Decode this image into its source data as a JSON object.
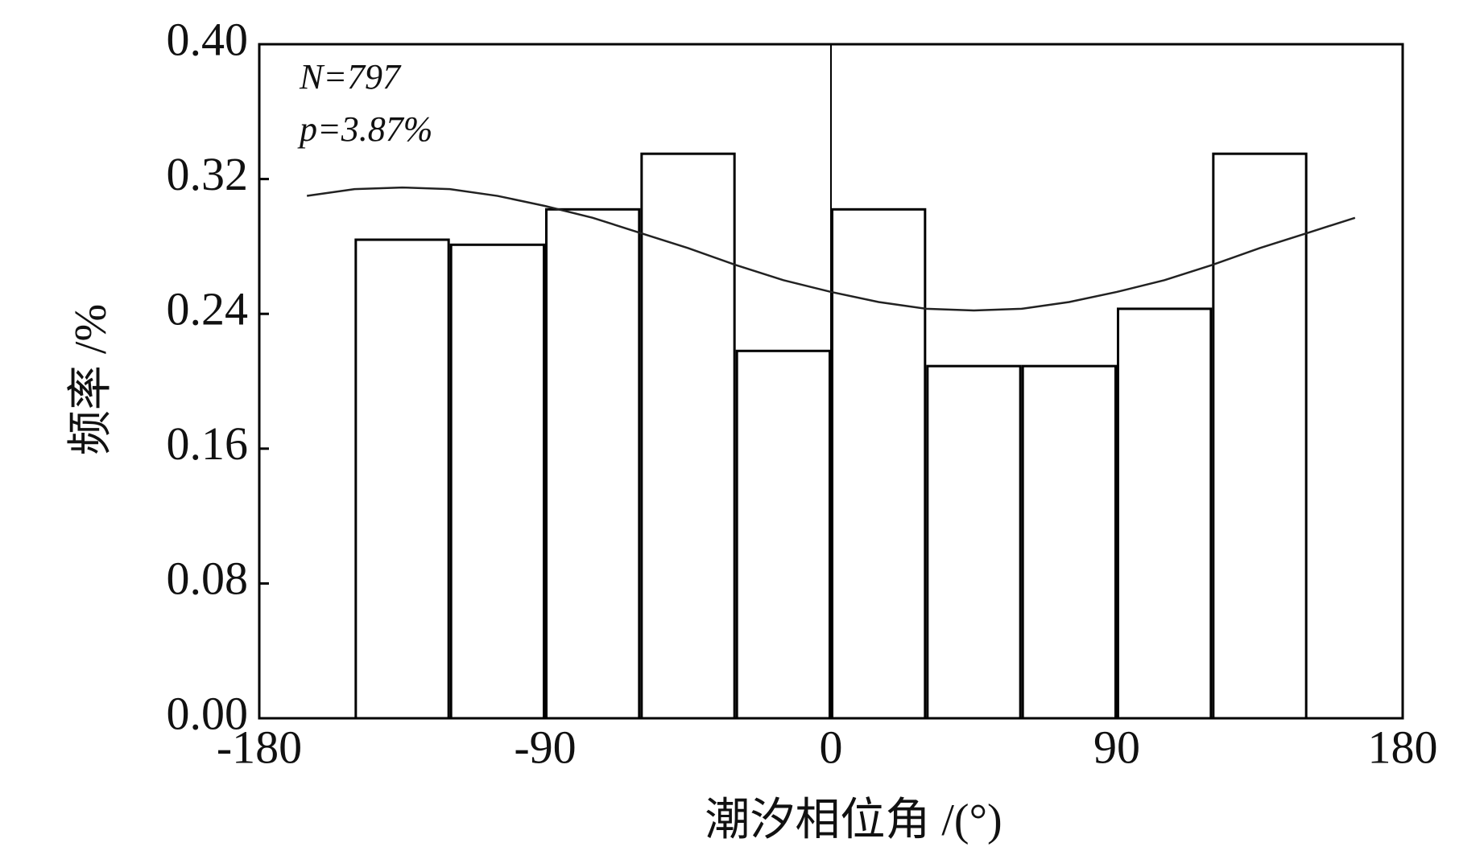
{
  "chart_data": {
    "type": "histogram",
    "xlabel": "潮汐相位角 /(°)",
    "ylabel": "频率 /%",
    "annotations": [
      "N=797",
      "p=3.87%"
    ],
    "bins": [
      -150,
      -120,
      -90,
      -60,
      -30,
      0,
      30,
      60,
      90,
      120,
      150
    ],
    "values": [
      0.284,
      0.281,
      0.302,
      0.335,
      0.218,
      0.302,
      0.209,
      0.209,
      0.243,
      0.335
    ],
    "color": "#ffffff",
    "edgecolor": "#000000",
    "fit": {
      "type": "line",
      "color": "#222222",
      "x": [
        -165,
        -150,
        -135,
        -120,
        -105,
        -90,
        -75,
        -60,
        -45,
        -30,
        -15,
        0,
        15,
        30,
        45,
        60,
        75,
        90,
        105,
        120,
        135,
        150,
        165
      ],
      "values": [
        0.31,
        0.314,
        0.315,
        0.314,
        0.31,
        0.304,
        0.297,
        0.288,
        0.279,
        0.269,
        0.26,
        0.253,
        0.247,
        0.243,
        0.242,
        0.243,
        0.247,
        0.253,
        0.26,
        0.269,
        0.279,
        0.288,
        0.297
      ]
    },
    "xlim": [
      -180,
      180
    ],
    "xticks": [
      -180,
      -90,
      0,
      90,
      180
    ],
    "ylim": [
      0,
      0.4
    ],
    "yticks": [
      {
        "value": 0,
        "label": "0.00"
      },
      {
        "value": 0.08,
        "label": "0.08"
      },
      {
        "value": 0.16,
        "label": "0.16"
      },
      {
        "value": 0.24,
        "label": "0.24"
      },
      {
        "value": 0.32,
        "label": "0.32"
      },
      {
        "value": 0.4,
        "label": "0.40"
      }
    ]
  }
}
